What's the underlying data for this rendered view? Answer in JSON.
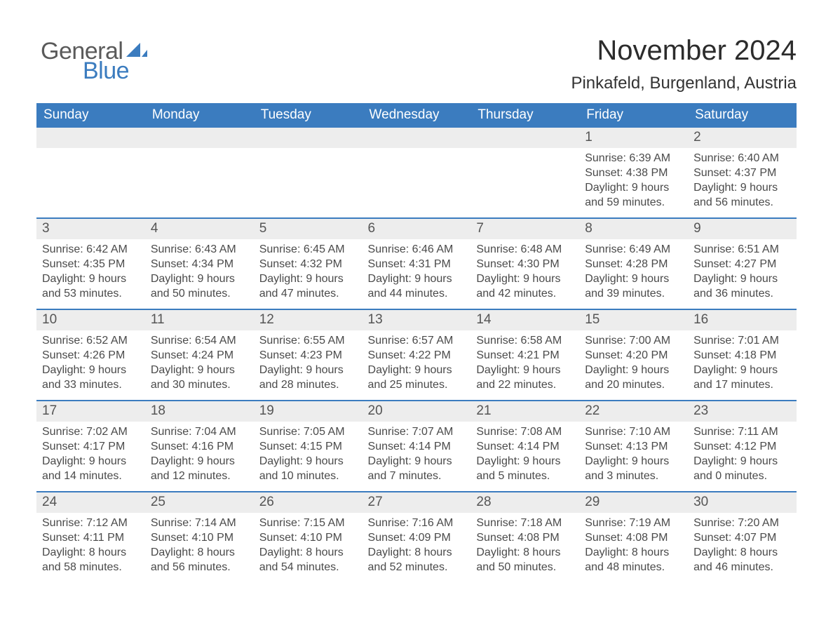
{
  "logo": {
    "word_a": "General",
    "word_b": "Blue"
  },
  "title": "November 2024",
  "location": "Pinkafeld, Burgenland, Austria",
  "colors": {
    "accent": "#3b7cbf",
    "cell_bg": "#ededed",
    "background": "#ffffff",
    "text": "#3a3a3a",
    "logo_grey": "#5a5a5a"
  },
  "weekdays": [
    "Sunday",
    "Monday",
    "Tuesday",
    "Wednesday",
    "Thursday",
    "Friday",
    "Saturday"
  ],
  "weeks": [
    [
      null,
      null,
      null,
      null,
      null,
      {
        "d": "1",
        "sunrise": "6:39 AM",
        "sunset": "4:38 PM",
        "dl1": "Daylight: 9 hours",
        "dl2": "and 59 minutes."
      },
      {
        "d": "2",
        "sunrise": "6:40 AM",
        "sunset": "4:37 PM",
        "dl1": "Daylight: 9 hours",
        "dl2": "and 56 minutes."
      }
    ],
    [
      {
        "d": "3",
        "sunrise": "6:42 AM",
        "sunset": "4:35 PM",
        "dl1": "Daylight: 9 hours",
        "dl2": "and 53 minutes."
      },
      {
        "d": "4",
        "sunrise": "6:43 AM",
        "sunset": "4:34 PM",
        "dl1": "Daylight: 9 hours",
        "dl2": "and 50 minutes."
      },
      {
        "d": "5",
        "sunrise": "6:45 AM",
        "sunset": "4:32 PM",
        "dl1": "Daylight: 9 hours",
        "dl2": "and 47 minutes."
      },
      {
        "d": "6",
        "sunrise": "6:46 AM",
        "sunset": "4:31 PM",
        "dl1": "Daylight: 9 hours",
        "dl2": "and 44 minutes."
      },
      {
        "d": "7",
        "sunrise": "6:48 AM",
        "sunset": "4:30 PM",
        "dl1": "Daylight: 9 hours",
        "dl2": "and 42 minutes."
      },
      {
        "d": "8",
        "sunrise": "6:49 AM",
        "sunset": "4:28 PM",
        "dl1": "Daylight: 9 hours",
        "dl2": "and 39 minutes."
      },
      {
        "d": "9",
        "sunrise": "6:51 AM",
        "sunset": "4:27 PM",
        "dl1": "Daylight: 9 hours",
        "dl2": "and 36 minutes."
      }
    ],
    [
      {
        "d": "10",
        "sunrise": "6:52 AM",
        "sunset": "4:26 PM",
        "dl1": "Daylight: 9 hours",
        "dl2": "and 33 minutes."
      },
      {
        "d": "11",
        "sunrise": "6:54 AM",
        "sunset": "4:24 PM",
        "dl1": "Daylight: 9 hours",
        "dl2": "and 30 minutes."
      },
      {
        "d": "12",
        "sunrise": "6:55 AM",
        "sunset": "4:23 PM",
        "dl1": "Daylight: 9 hours",
        "dl2": "and 28 minutes."
      },
      {
        "d": "13",
        "sunrise": "6:57 AM",
        "sunset": "4:22 PM",
        "dl1": "Daylight: 9 hours",
        "dl2": "and 25 minutes."
      },
      {
        "d": "14",
        "sunrise": "6:58 AM",
        "sunset": "4:21 PM",
        "dl1": "Daylight: 9 hours",
        "dl2": "and 22 minutes."
      },
      {
        "d": "15",
        "sunrise": "7:00 AM",
        "sunset": "4:20 PM",
        "dl1": "Daylight: 9 hours",
        "dl2": "and 20 minutes."
      },
      {
        "d": "16",
        "sunrise": "7:01 AM",
        "sunset": "4:18 PM",
        "dl1": "Daylight: 9 hours",
        "dl2": "and 17 minutes."
      }
    ],
    [
      {
        "d": "17",
        "sunrise": "7:02 AM",
        "sunset": "4:17 PM",
        "dl1": "Daylight: 9 hours",
        "dl2": "and 14 minutes."
      },
      {
        "d": "18",
        "sunrise": "7:04 AM",
        "sunset": "4:16 PM",
        "dl1": "Daylight: 9 hours",
        "dl2": "and 12 minutes."
      },
      {
        "d": "19",
        "sunrise": "7:05 AM",
        "sunset": "4:15 PM",
        "dl1": "Daylight: 9 hours",
        "dl2": "and 10 minutes."
      },
      {
        "d": "20",
        "sunrise": "7:07 AM",
        "sunset": "4:14 PM",
        "dl1": "Daylight: 9 hours",
        "dl2": "and 7 minutes."
      },
      {
        "d": "21",
        "sunrise": "7:08 AM",
        "sunset": "4:14 PM",
        "dl1": "Daylight: 9 hours",
        "dl2": "and 5 minutes."
      },
      {
        "d": "22",
        "sunrise": "7:10 AM",
        "sunset": "4:13 PM",
        "dl1": "Daylight: 9 hours",
        "dl2": "and 3 minutes."
      },
      {
        "d": "23",
        "sunrise": "7:11 AM",
        "sunset": "4:12 PM",
        "dl1": "Daylight: 9 hours",
        "dl2": "and 0 minutes."
      }
    ],
    [
      {
        "d": "24",
        "sunrise": "7:12 AM",
        "sunset": "4:11 PM",
        "dl1": "Daylight: 8 hours",
        "dl2": "and 58 minutes."
      },
      {
        "d": "25",
        "sunrise": "7:14 AM",
        "sunset": "4:10 PM",
        "dl1": "Daylight: 8 hours",
        "dl2": "and 56 minutes."
      },
      {
        "d": "26",
        "sunrise": "7:15 AM",
        "sunset": "4:10 PM",
        "dl1": "Daylight: 8 hours",
        "dl2": "and 54 minutes."
      },
      {
        "d": "27",
        "sunrise": "7:16 AM",
        "sunset": "4:09 PM",
        "dl1": "Daylight: 8 hours",
        "dl2": "and 52 minutes."
      },
      {
        "d": "28",
        "sunrise": "7:18 AM",
        "sunset": "4:08 PM",
        "dl1": "Daylight: 8 hours",
        "dl2": "and 50 minutes."
      },
      {
        "d": "29",
        "sunrise": "7:19 AM",
        "sunset": "4:08 PM",
        "dl1": "Daylight: 8 hours",
        "dl2": "and 48 minutes."
      },
      {
        "d": "30",
        "sunrise": "7:20 AM",
        "sunset": "4:07 PM",
        "dl1": "Daylight: 8 hours",
        "dl2": "and 46 minutes."
      }
    ]
  ],
  "labels": {
    "sunrise": "Sunrise: ",
    "sunset": "Sunset: "
  }
}
